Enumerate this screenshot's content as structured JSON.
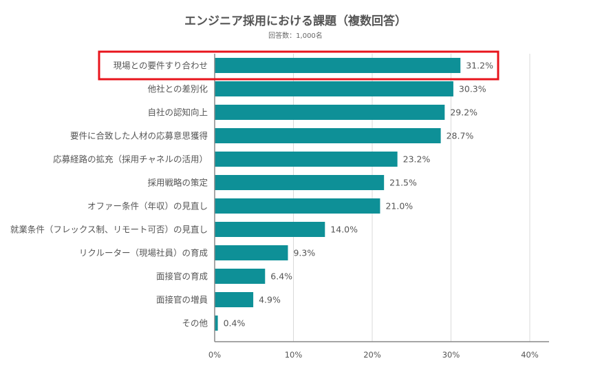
{
  "chart_data": {
    "type": "bar",
    "orientation": "horizontal",
    "title": "エンジニア採用における課題（複数回答）",
    "subtitle": "回答数：1,000名",
    "categories": [
      "現場との要件すり合わせ",
      "他社との差別化",
      "自社の認知向上",
      "要件に合致した人材の応募意思獲得",
      "応募経路の拡充（採用チャネルの活用）",
      "採用戦略の策定",
      "オファー条件（年収）の見直し",
      "就業条件（フレックス制、リモート可否）の見直し",
      "リクルーター（現場社員）の育成",
      "面接官の育成",
      "面接官の増員",
      "その他"
    ],
    "values": [
      31.2,
      30.3,
      29.2,
      28.7,
      23.2,
      21.5,
      21.0,
      14.0,
      9.3,
      6.4,
      4.9,
      0.4
    ],
    "value_labels": [
      "31.2%",
      "30.3%",
      "29.2%",
      "28.7%",
      "23.2%",
      "21.5%",
      "21.0%",
      "14.0%",
      "9.3%",
      "6.4%",
      "4.9%",
      "0.4%"
    ],
    "xlim": [
      0,
      40
    ],
    "x_ticks": [
      "0%",
      "10%",
      "20%",
      "30%",
      "40%"
    ],
    "x_tick_values": [
      0,
      10,
      20,
      30,
      40
    ],
    "highlight_index": 0,
    "grid": true,
    "colors": {
      "bar": "#0e9097",
      "highlight_border": "#e8141c",
      "grid": "#d9d9d9",
      "axis": "#888888",
      "text": "#555555"
    }
  }
}
